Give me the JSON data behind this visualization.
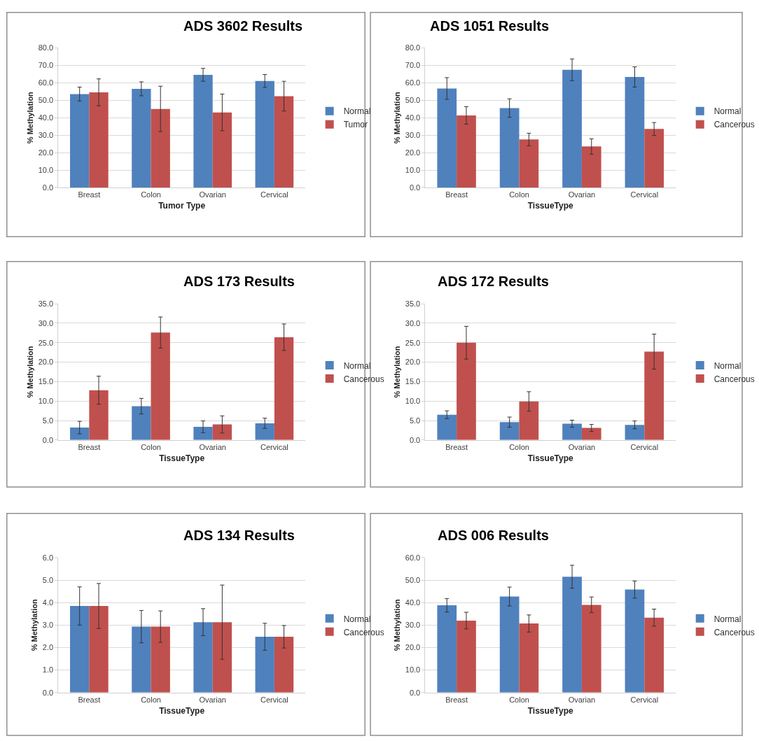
{
  "chart_data": [
    {
      "type": "bar",
      "title": "ADS 3602 Results",
      "xlabel": "Tumor Type",
      "ylabel": "% Methylation",
      "categories": [
        "Breast",
        "Colon",
        "Ovarian",
        "Cervical"
      ],
      "series": [
        {
          "name": "Normal",
          "color": "#4f81bd",
          "values": [
            53.5,
            56.5,
            64.5,
            61.0
          ],
          "errors": [
            4.0,
            4.0,
            3.7,
            3.7
          ]
        },
        {
          "name": "Tumor",
          "color": "#c0504d",
          "values": [
            54.5,
            45.0,
            43.0,
            52.3
          ],
          "errors": [
            7.7,
            13.0,
            10.5,
            8.5
          ]
        }
      ],
      "ylim": [
        0,
        80
      ],
      "yticks": [
        {
          "value": 0,
          "label": "0.0"
        },
        {
          "value": 10,
          "label": "10.0"
        },
        {
          "value": 20,
          "label": "20.0"
        },
        {
          "value": 30,
          "label": "30.0"
        },
        {
          "value": 40,
          "label": "40.0"
        },
        {
          "value": 50,
          "label": "50.0"
        },
        {
          "value": 60,
          "label": "60.0"
        },
        {
          "value": 70,
          "label": "70.0"
        },
        {
          "value": 80,
          "label": "80.0"
        }
      ],
      "grid": "y",
      "legend": "right"
    },
    {
      "type": "bar",
      "title": "ADS 1051 Results",
      "xlabel": "TissueType",
      "ylabel": "% Methylation",
      "categories": [
        "Breast",
        "Colon",
        "Ovarian",
        "Cervical"
      ],
      "series": [
        {
          "name": "Normal",
          "color": "#4f81bd",
          "values": [
            56.7,
            45.5,
            67.4,
            63.3
          ],
          "errors": [
            6.2,
            5.3,
            6.2,
            5.8
          ]
        },
        {
          "name": "Cancerous",
          "color": "#c0504d",
          "values": [
            41.3,
            27.5,
            23.5,
            33.5
          ],
          "errors": [
            5.0,
            3.6,
            4.4,
            3.7
          ]
        }
      ],
      "ylim": [
        0,
        80
      ],
      "yticks": [
        {
          "value": 0,
          "label": "0.0"
        },
        {
          "value": 10,
          "label": "10.0"
        },
        {
          "value": 20,
          "label": "20.0"
        },
        {
          "value": 30,
          "label": "30.0"
        },
        {
          "value": 40,
          "label": "40.0"
        },
        {
          "value": 50,
          "label": "50.0"
        },
        {
          "value": 60,
          "label": "60.0"
        },
        {
          "value": 70,
          "label": "70.0"
        },
        {
          "value": 80,
          "label": "80.0"
        }
      ],
      "grid": "y",
      "legend": "right"
    },
    {
      "type": "bar",
      "title": "ADS 173 Results",
      "xlabel": "TissueType",
      "ylabel": "% Methylation",
      "categories": [
        "Breast",
        "Colon",
        "Ovarian",
        "Cervical"
      ],
      "series": [
        {
          "name": "Normal",
          "color": "#4f81bd",
          "values": [
            3.2,
            8.7,
            3.4,
            4.3
          ],
          "errors": [
            1.6,
            2.0,
            1.5,
            1.3
          ]
        },
        {
          "name": "Cancerous",
          "color": "#c0504d",
          "values": [
            12.8,
            27.6,
            4.0,
            26.4
          ],
          "errors": [
            3.6,
            4.0,
            2.2,
            3.4
          ]
        }
      ],
      "ylim": [
        0,
        35
      ],
      "yticks": [
        {
          "value": 0,
          "label": "0.0"
        },
        {
          "value": 5,
          "label": "5.0"
        },
        {
          "value": 10,
          "label": "10.0"
        },
        {
          "value": 15,
          "label": "15.0"
        },
        {
          "value": 20,
          "label": "20.0"
        },
        {
          "value": 25,
          "label": "25.0"
        },
        {
          "value": 30,
          "label": "30.0"
        },
        {
          "value": 35,
          "label": "35.0"
        }
      ],
      "grid": "y",
      "legend": "right"
    },
    {
      "type": "bar",
      "title": "ADS 172 Results",
      "xlabel": "TissueType",
      "ylabel": "% Methylation",
      "categories": [
        "Breast",
        "Colon",
        "Ovarian",
        "Cervical"
      ],
      "series": [
        {
          "name": "Normal",
          "color": "#4f81bd",
          "values": [
            6.5,
            4.6,
            4.2,
            3.9
          ],
          "errors": [
            1.0,
            1.3,
            0.9,
            1.0
          ]
        },
        {
          "name": "Cancerous",
          "color": "#c0504d",
          "values": [
            25.0,
            9.9,
            3.1,
            22.7
          ],
          "errors": [
            4.2,
            2.5,
            0.9,
            4.5
          ]
        }
      ],
      "ylim": [
        0,
        35
      ],
      "yticks": [
        {
          "value": 0,
          "label": "0.0"
        },
        {
          "value": 5,
          "label": "5.0"
        },
        {
          "value": 10,
          "label": "10.0"
        },
        {
          "value": 15,
          "label": "15.0"
        },
        {
          "value": 20,
          "label": "20.0"
        },
        {
          "value": 25,
          "label": "25.0"
        },
        {
          "value": 30,
          "label": "30.0"
        },
        {
          "value": 35,
          "label": "35.0"
        }
      ],
      "grid": "y",
      "legend": "right"
    },
    {
      "type": "bar",
      "title": "ADS 134 Results",
      "xlabel": "TissueType",
      "ylabel": "% Methylation",
      "categories": [
        "Breast",
        "Colon",
        "Ovarian",
        "Cervical"
      ],
      "series": [
        {
          "name": "Normal",
          "color": "#4f81bd",
          "values": [
            3.85,
            2.93,
            3.13,
            2.48
          ],
          "errors": [
            0.85,
            0.72,
            0.6,
            0.6
          ]
        },
        {
          "name": "Cancerous",
          "color": "#c0504d",
          "values": [
            3.85,
            2.93,
            3.13,
            2.48
          ],
          "errors": [
            1.0,
            0.7,
            1.65,
            0.5
          ]
        }
      ],
      "ylim": [
        0,
        6
      ],
      "yticks": [
        {
          "value": 0,
          "label": "0.0"
        },
        {
          "value": 1,
          "label": "1.0"
        },
        {
          "value": 2,
          "label": "2.0"
        },
        {
          "value": 3,
          "label": "3.0"
        },
        {
          "value": 4,
          "label": "4.0"
        },
        {
          "value": 5,
          "label": "5.0"
        },
        {
          "value": 6,
          "label": "6.0"
        }
      ],
      "grid": "y",
      "legend": "right"
    },
    {
      "type": "bar",
      "title": "ADS 006 Results",
      "xlabel": "TissueType",
      "ylabel": "% Methylation",
      "categories": [
        "Breast",
        "Colon",
        "Ovarian",
        "Cervical"
      ],
      "series": [
        {
          "name": "Normal",
          "color": "#4f81bd",
          "values": [
            38.8,
            42.7,
            51.5,
            45.8
          ],
          "errors": [
            3.0,
            4.2,
            5.1,
            3.8
          ]
        },
        {
          "name": "Cancerous",
          "color": "#c0504d",
          "values": [
            32.0,
            30.7,
            39.0,
            33.3
          ],
          "errors": [
            3.7,
            3.8,
            3.5,
            3.8
          ]
        }
      ],
      "ylim": [
        0,
        60
      ],
      "yticks": [
        {
          "value": 0,
          "label": "0.0"
        },
        {
          "value": 10,
          "label": "10.0"
        },
        {
          "value": 20,
          "label": "20.0"
        },
        {
          "value": 30,
          "label": "30.0"
        },
        {
          "value": 40,
          "label": "40.0"
        },
        {
          "value": 50,
          "label": "50.0"
        },
        {
          "value": 60,
          "label": "60.0"
        }
      ],
      "grid": "y",
      "legend": "right"
    }
  ]
}
